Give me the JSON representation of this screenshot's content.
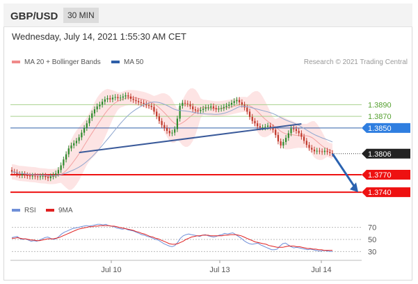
{
  "header": {
    "symbol": "GBP/USD",
    "timeframe": "30 MIN"
  },
  "timestamp": "Wednesday, July 14, 2021 1:55:30 AM CET",
  "legend": {
    "ma20": {
      "label": "MA 20 + Bollinger Bands",
      "color": "#f08a8a"
    },
    "ma50": {
      "label": "MA 50",
      "color": "#2f5fa8"
    }
  },
  "credit": "Research © 2021 Trading Central",
  "rsi_legend": {
    "rsi": {
      "label": "RSI",
      "color": "#6f8fd8"
    },
    "ma9": {
      "label": "9MA",
      "color": "#e02020"
    }
  },
  "chart_data": {
    "type": "candlestick",
    "x_tick_labels": [
      "Jul 10",
      "Jul 13",
      "Jul 14"
    ],
    "price_levels": [
      {
        "value": 1.389,
        "label": "1.3890",
        "style": "green-line"
      },
      {
        "value": 1.387,
        "label": "1.3870",
        "style": "green-line"
      },
      {
        "value": 1.385,
        "label": "1.3850",
        "style": "blue-tag"
      },
      {
        "value": 1.3806,
        "label": "1.3806",
        "style": "current-price"
      },
      {
        "value": 1.377,
        "label": "1.3770",
        "style": "red-tag"
      },
      {
        "value": 1.374,
        "label": "1.3740",
        "style": "red-tag"
      }
    ],
    "close_series": [
      1.3775,
      1.3774,
      1.3771,
      1.3769,
      1.3771,
      1.3769,
      1.3768,
      1.3767,
      1.3768,
      1.3767,
      1.3766,
      1.3767,
      1.3768,
      1.3766,
      1.3764,
      1.3767,
      1.3769,
      1.3772,
      1.3778,
      1.3786,
      1.3796,
      1.3805,
      1.3815,
      1.382,
      1.3824,
      1.3828,
      1.3834,
      1.3842,
      1.385,
      1.3858,
      1.3867,
      1.3875,
      1.3882,
      1.3887,
      1.389,
      1.3895,
      1.3899,
      1.3901,
      1.3899,
      1.3902,
      1.3903,
      1.3901,
      1.3902,
      1.3904,
      1.3906,
      1.3904,
      1.39,
      1.3898,
      1.3896,
      1.3894,
      1.3893,
      1.3891,
      1.3889,
      1.3888,
      1.3886,
      1.3878,
      1.387,
      1.3862,
      1.3855,
      1.385,
      1.3845,
      1.3841,
      1.3842,
      1.3848,
      1.3866,
      1.3888,
      1.3893,
      1.3892,
      1.3891,
      1.3887,
      1.3882,
      1.388,
      1.3879,
      1.3881,
      1.3883,
      1.3885,
      1.3885,
      1.3887,
      1.3884,
      1.3882,
      1.3883,
      1.3884,
      1.3886,
      1.3888,
      1.389,
      1.3893,
      1.3896,
      1.3898,
      1.3894,
      1.389,
      1.3885,
      1.3878,
      1.3869,
      1.3862,
      1.3858,
      1.3853,
      1.3851,
      1.3851,
      1.3852,
      1.3854,
      1.3851,
      1.3847,
      1.3838,
      1.3827,
      1.382,
      1.3826,
      1.3833,
      1.3841,
      1.3849,
      1.3848,
      1.3845,
      1.3841,
      1.3835,
      1.3828,
      1.3821,
      1.3816,
      1.3813,
      1.381,
      1.3811,
      1.381,
      1.3809,
      1.3811,
      1.3809,
      1.3807,
      1.3806
    ],
    "trendline_support": {
      "from_index": 26,
      "to_index": 112,
      "from_value": 1.3808,
      "to_value": 1.3857
    },
    "arrow_target": 1.374,
    "y_range": [
      1.3733,
      1.395
    ],
    "rsi": {
      "levels": [
        70,
        50,
        30
      ],
      "values": [
        53,
        54,
        55,
        51,
        50,
        51,
        49,
        47,
        48,
        47,
        49,
        51,
        53,
        54,
        52,
        50,
        51,
        55,
        59,
        62,
        64,
        66,
        68,
        69,
        70,
        71,
        72,
        73,
        72,
        73,
        74,
        75,
        75,
        74,
        75,
        73,
        72,
        71,
        69,
        68,
        67,
        68,
        66,
        65,
        64,
        62,
        60,
        58,
        57,
        55,
        54,
        52,
        50,
        49,
        46,
        43,
        41,
        39,
        38,
        40,
        45,
        52,
        56,
        58,
        59,
        58,
        57,
        56,
        55,
        57,
        58,
        56,
        55,
        54,
        55,
        57,
        58,
        60,
        59,
        60,
        61,
        58,
        55,
        52,
        48,
        45,
        43,
        42,
        43,
        44,
        41,
        39,
        37,
        35,
        33,
        33,
        34,
        39,
        43,
        44,
        41,
        38,
        36,
        37,
        36,
        35,
        34,
        33,
        34,
        33,
        32,
        31,
        31,
        32,
        31,
        30,
        30
      ],
      "ma9": [
        52,
        52,
        53,
        52,
        51,
        51,
        50,
        49,
        49,
        48,
        48,
        49,
        50,
        51,
        51,
        51,
        52,
        53,
        55,
        57,
        59,
        61,
        63,
        65,
        67,
        68,
        69,
        70,
        71,
        71,
        72,
        72,
        73,
        73,
        73,
        73,
        72,
        72,
        71,
        70,
        69,
        68,
        67,
        66,
        65,
        63,
        62,
        60,
        59,
        57,
        55,
        54,
        52,
        51,
        49,
        47,
        45,
        43,
        42,
        42,
        43,
        45,
        47,
        50,
        52,
        54,
        55,
        56,
        56,
        57,
        57,
        57,
        56,
        56,
        56,
        56,
        56,
        57,
        57,
        58,
        58,
        58,
        57,
        56,
        54,
        52,
        50,
        48,
        46,
        45,
        44,
        43,
        42,
        40,
        39,
        38,
        37,
        37,
        37,
        38,
        39,
        39,
        39,
        38,
        38,
        37,
        36,
        35,
        35,
        34,
        34,
        33,
        33,
        32,
        32,
        32,
        32
      ]
    }
  }
}
